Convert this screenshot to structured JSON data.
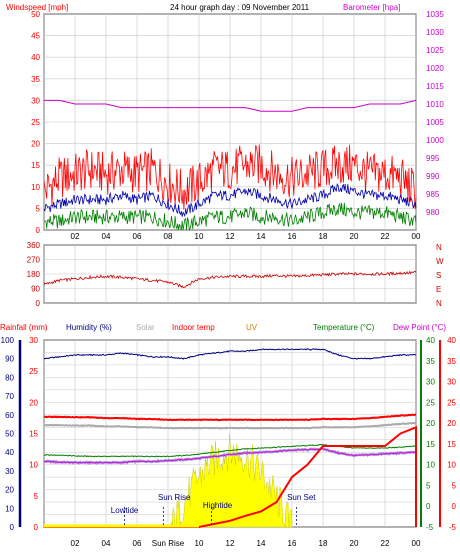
{
  "header": {
    "windspeed_label": "Windspeed [mph]",
    "title": "24 hour graph day : 09 November 2011",
    "barometer_label": "Barometer [hpa]"
  },
  "wind_panel": {
    "left_ticks": [
      "50",
      "45",
      "40",
      "35",
      "30",
      "25",
      "20",
      "15",
      "10",
      "5",
      "0"
    ],
    "right_ticks": [
      "1035",
      "1030",
      "1025",
      "1020",
      "1015",
      "1010",
      "1005",
      "1000",
      "995",
      "990",
      "985",
      "980"
    ]
  },
  "winddir_panel": {
    "left_ticks": [
      "360",
      "270",
      "180",
      "90",
      "0"
    ],
    "compass": [
      "N",
      "W",
      "S",
      "E",
      "N"
    ]
  },
  "bottom_header": {
    "rainfall": "Rainfall (mm)",
    "humidity": "Humidity (%)",
    "solar": "Solar",
    "indoor": "Indoor temp",
    "uv": "UV",
    "temperature": "Temperature (°C)",
    "dewpoint": "Dew Point (°C)"
  },
  "bottom_panel": {
    "rain_ticks": [
      "30",
      "25",
      "20",
      "15",
      "10",
      "5",
      "0"
    ],
    "humidity_ticks": [
      "100",
      "90",
      "80",
      "70",
      "60",
      "50",
      "40",
      "30",
      "20",
      "10",
      "0"
    ],
    "uv_ticks": [
      "40",
      "35",
      "30",
      "25",
      "20",
      "15",
      "10",
      "5",
      "0",
      "-5"
    ],
    "temp_ticks": [
      "40",
      "35",
      "30",
      "25",
      "20",
      "15",
      "10",
      "5",
      "0",
      "-5"
    ]
  },
  "annotations": {
    "lowtide": "Lowtide",
    "sunrise": "Sun Rise",
    "hightide": "Hightide",
    "sunset": "Sun Set"
  },
  "x_labels_top": [
    "02",
    "04",
    "06",
    "08",
    "10",
    "12",
    "14",
    "16",
    "18",
    "20",
    "22",
    "00"
  ],
  "x_labels_bottom": [
    "02",
    "04",
    "06",
    "Sun Rise",
    "10",
    "12",
    "14",
    "16",
    "18",
    "20",
    "22",
    "00"
  ],
  "colors": {
    "windspeed": "#ff0000",
    "average": "#0000aa",
    "gust_low": "#008000",
    "barometer": "#cc00cc",
    "grid": "#c8c8c8",
    "humidity": "#000080",
    "solar": "#ffff00",
    "indoor": "#aaaaaa",
    "temperature": "#008000",
    "dewpoint": "#cc00cc",
    "rain": "#ff0000"
  },
  "chart_data": [
    {
      "type": "line",
      "title": "24 hour graph day : 09 November 2011",
      "xlabel": "",
      "ylabel": "Windspeed [mph]",
      "ylim": [
        0,
        50
      ],
      "y2label": "Barometer [hpa]",
      "y2lim": [
        975,
        1035
      ],
      "x": [
        0,
        1,
        2,
        3,
        4,
        5,
        6,
        7,
        8,
        9,
        10,
        11,
        12,
        13,
        14,
        15,
        16,
        17,
        18,
        19,
        20,
        21,
        22,
        23,
        24
      ],
      "series": [
        {
          "name": "Windspeed [mph]",
          "values": [
            9,
            12,
            13,
            14,
            13,
            14,
            13,
            14,
            11,
            9,
            11,
            14,
            14,
            15,
            15,
            13,
            12,
            13,
            14,
            15,
            15,
            13,
            13,
            12,
            9
          ]
        },
        {
          "name": "",
          "values": [
            5,
            6,
            7,
            7,
            7,
            8,
            7,
            8,
            6,
            4,
            6,
            8,
            8,
            9,
            8,
            7,
            6,
            7,
            8,
            10,
            9,
            8,
            8,
            7,
            6
          ]
        },
        {
          "name": "",
          "values": [
            2,
            2,
            3,
            3,
            3,
            3,
            3,
            3,
            2,
            1,
            2,
            3,
            3,
            4,
            3,
            3,
            2,
            3,
            4,
            5,
            4,
            4,
            4,
            3,
            2
          ]
        },
        {
          "name": "Barometer [hpa]",
          "values": [
            1011,
            1011,
            1010,
            1010,
            1010,
            1009,
            1009,
            1009,
            1009,
            1009,
            1009,
            1009,
            1009,
            1009,
            1008,
            1008,
            1008,
            1009,
            1009,
            1009,
            1009,
            1010,
            1010,
            1010,
            1011
          ]
        }
      ]
    },
    {
      "type": "line",
      "title": "",
      "ylabel": "",
      "ylim": [
        0,
        360
      ],
      "x": [
        0,
        1,
        2,
        3,
        4,
        5,
        6,
        7,
        8,
        9,
        10,
        11,
        12,
        13,
        14,
        15,
        16,
        17,
        18,
        19,
        20,
        21,
        22,
        23,
        24
      ],
      "series": [
        {
          "name": "",
          "values": [
            115,
            140,
            150,
            160,
            165,
            160,
            150,
            140,
            130,
            100,
            150,
            160,
            165,
            165,
            165,
            170,
            165,
            170,
            175,
            180,
            180,
            180,
            180,
            185,
            190
          ]
        }
      ]
    },
    {
      "type": "line",
      "title": "",
      "ylabel": "Humidity (%)",
      "ylim": [
        0,
        100
      ],
      "x": [
        0,
        1,
        2,
        3,
        4,
        5,
        6,
        7,
        8,
        9,
        10,
        11,
        12,
        13,
        14,
        15,
        16,
        17,
        18,
        19,
        20,
        21,
        22,
        23,
        24
      ],
      "series": [
        {
          "name": "Humidity (%)",
          "values": [
            90,
            91,
            92,
            92,
            92,
            93,
            92,
            91,
            91,
            90,
            92,
            93,
            94,
            94,
            95,
            95,
            95,
            95,
            95,
            92,
            90,
            90,
            91,
            92,
            92
          ]
        },
        {
          "name": "Indoor temp",
          "values": [
            21.5,
            21.5,
            21.4,
            21.4,
            21.2,
            21.2,
            21.0,
            21.0,
            20.8,
            20.8,
            20.8,
            20.8,
            20.8,
            20.8,
            20.8,
            20.8,
            20.8,
            20.8,
            21.0,
            21.0,
            21.0,
            21.2,
            21.5,
            21.8,
            22.0
          ]
        },
        {
          "name": "Temperature (°C)",
          "values": [
            12.3,
            12.3,
            12.1,
            12.0,
            12.0,
            12.0,
            12.0,
            12.0,
            12.0,
            12.2,
            12.5,
            13.0,
            13.4,
            13.8,
            14.0,
            14.2,
            14.4,
            14.6,
            14.8,
            14.4,
            14.0,
            14.0,
            14.0,
            14.2,
            14.5
          ]
        },
        {
          "name": "Dew Point (°C)",
          "values": [
            10.8,
            10.6,
            10.5,
            10.5,
            10.5,
            10.5,
            10.8,
            10.8,
            11.0,
            11.2,
            11.5,
            12.0,
            12.4,
            12.8,
            13.0,
            13.2,
            13.5,
            13.6,
            13.8,
            12.8,
            12.2,
            12.4,
            12.6,
            12.8,
            13.0
          ]
        },
        {
          "name": "Rainfall (mm)",
          "values": [
            0,
            0,
            0,
            0,
            0,
            0,
            0,
            0,
            0,
            0,
            0,
            0.5,
            1,
            1.8,
            2.5,
            4,
            8,
            10,
            13,
            13,
            13,
            13,
            13,
            15,
            16
          ]
        }
      ]
    }
  ]
}
